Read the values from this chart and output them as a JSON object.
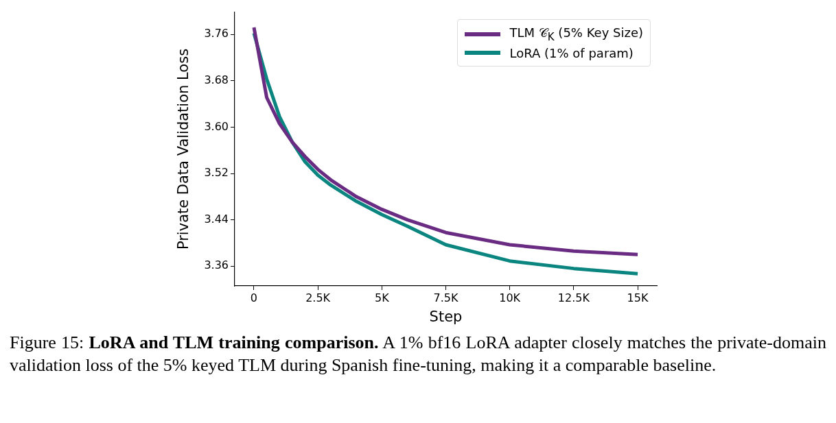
{
  "chart_data": {
    "type": "line",
    "xlabel": "Step",
    "ylabel": "Private Data Validation Loss",
    "x": [
      0,
      500,
      1000,
      1500,
      2000,
      2500,
      3000,
      4000,
      5000,
      6000,
      7500,
      10000,
      12500,
      15000
    ],
    "series": [
      {
        "name": "TLM 𝒞$_{K}$ (5% Key Size)",
        "color": "#6a2c82",
        "values": [
          3.772,
          3.651,
          3.606,
          3.574,
          3.549,
          3.527,
          3.509,
          3.48,
          3.458,
          3.44,
          3.418,
          3.397,
          3.386,
          3.38
        ]
      },
      {
        "name": "LoRA (1% of param)",
        "color": "#0a8580",
        "values": [
          3.762,
          3.683,
          3.618,
          3.574,
          3.54,
          3.517,
          3.5,
          3.472,
          3.449,
          3.429,
          3.397,
          3.369,
          3.356,
          3.347
        ]
      }
    ],
    "xlim": [
      -750,
      15750
    ],
    "xticks": [
      0,
      {
        "value": 2500,
        "label": "2.5K"
      },
      {
        "value": 5000,
        "label": "5K"
      },
      {
        "value": 7500,
        "label": "7.5K"
      },
      {
        "value": 10000,
        "label": "10K"
      },
      {
        "value": 12500,
        "label": "12.5K"
      },
      {
        "value": 15000,
        "label": "15K"
      }
    ],
    "ylim": [
      3.326,
      3.798
    ],
    "yticks": [
      {
        "value": 3.36,
        "label": "3.36"
      },
      {
        "value": 3.44,
        "label": "3.44"
      },
      {
        "value": 3.52,
        "label": "3.52"
      },
      {
        "value": 3.6,
        "label": "3.60"
      },
      {
        "value": 3.68,
        "label": "3.68"
      },
      {
        "value": 3.76,
        "label": "3.76"
      }
    ],
    "grid": false,
    "legend": "top right",
    "marker": "none",
    "line_style": "solid",
    "annotations": [
      "Figure 15:",
      "LoRA and TLM training comparison.",
      "A 1% bf16 LoRA adapter closely matches the private-domain validation loss of the 5% keyed TLM during Spanish fine-tuning, making it a comparable baseline."
    ]
  }
}
